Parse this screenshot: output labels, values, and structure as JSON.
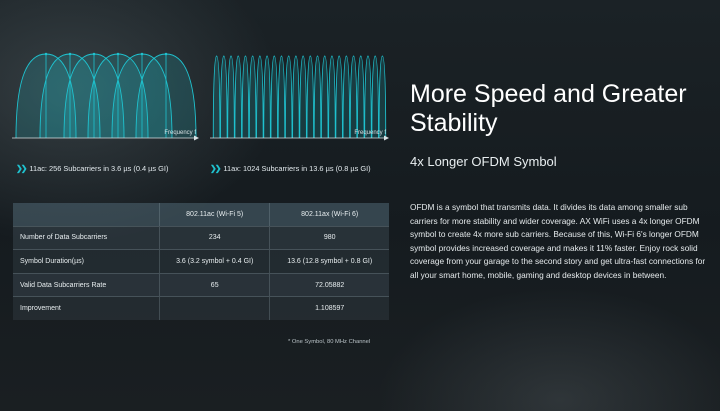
{
  "left_chart": {
    "subcarriers": 6,
    "axis_label": "Frequency f",
    "caption": "11ac: 256 Subcarriers in 3.6 µs (0.4 µs GI)"
  },
  "right_chart": {
    "subcarriers": 24,
    "axis_label": "Frequency f",
    "caption": "11ax: 1024 Subcarriers in 13.6 µs (0.8 µs GI)"
  },
  "colors": {
    "accent": "#1fc2cf",
    "curve_fill": "rgba(31,194,207,0.18)"
  },
  "table": {
    "headers": [
      "",
      "802.11ac (Wi-Fi 5)",
      "802.11ax (Wi-Fi 6)"
    ],
    "rows": [
      {
        "label": "Number of Data Subcarriers",
        "ac": "234",
        "ax": "980"
      },
      {
        "label": "Symbol Duration(µs)",
        "ac": "3.6 (3.2 symbol + 0.4 GI)",
        "ax": "13.6 (12.8 symbol + 0.8 GI)"
      },
      {
        "label": "Valid Data Subcarriers Rate",
        "ac": "65",
        "ax": "72.05882"
      },
      {
        "label": "Improvement",
        "ac": "",
        "ax": "1.108597"
      }
    ],
    "footnote": "* One Symbol, 80 MHz Channel"
  },
  "heading": {
    "title": "More Speed and Greater Stability",
    "subtitle": "4x Longer OFDM Symbol"
  },
  "body_text": "OFDM is a symbol that transmits data. It divides its data among smaller sub carriers for more stability and wider coverage. AX WiFi uses a 4x longer OFDM symbol to create 4x more sub carriers. Because of this, Wi-Fi 6's longer OFDM symbol provides increased coverage and makes it 11% faster. Enjoy rock solid coverage from your garage to the second story and get ultra-fast connections for all your smart home, mobile, gaming and desktop devices in between."
}
